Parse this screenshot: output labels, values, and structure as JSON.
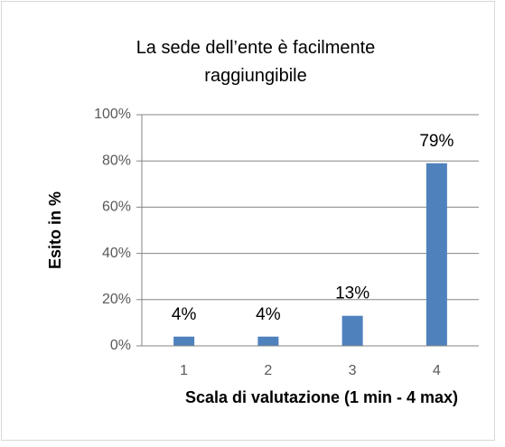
{
  "chart_data": {
    "type": "bar",
    "title": "La sede dell’ente è facilmente raggiungibile",
    "x_label": "Scala di valutazione (1 min - 4 max)",
    "y_label": "Esito in %",
    "categories": [
      "1",
      "2",
      "3",
      "4"
    ],
    "values": [
      4,
      4,
      13,
      79
    ],
    "value_labels": [
      "4%",
      "4%",
      "13%",
      "79%"
    ],
    "color": "#4f81bd",
    "ylim": [
      0,
      100
    ],
    "yticks": [
      {
        "value": 0,
        "label": "0%"
      },
      {
        "value": 20,
        "label": "20%"
      },
      {
        "value": 40,
        "label": "40%"
      },
      {
        "value": 60,
        "label": "60%"
      },
      {
        "value": 80,
        "label": "80%"
      },
      {
        "value": 100,
        "label": "100%"
      }
    ],
    "grid": true
  }
}
